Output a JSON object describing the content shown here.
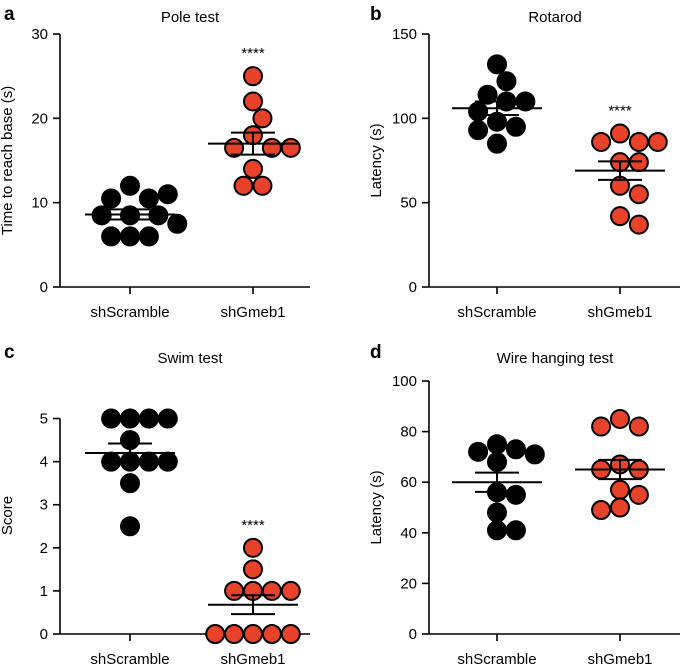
{
  "colors": {
    "group1": "#000000",
    "group2": "#e8432a",
    "outline": "#000000"
  },
  "chart_data": [
    {
      "id": "a",
      "type": "scatter",
      "panel_letter": "a",
      "title": "Pole test",
      "ylabel": "Time to reach base (s)",
      "ylim": [
        0,
        30
      ],
      "yticks": [
        0,
        10,
        20,
        30
      ],
      "categories": [
        "shScramble",
        "shGmeb1"
      ],
      "series": [
        {
          "name": "shScramble",
          "values": [
            12,
            10.5,
            10.5,
            11,
            8.5,
            8.5,
            8.5,
            7.5,
            6,
            6,
            6
          ],
          "mean": 8.6,
          "sem": 0.6
        },
        {
          "name": "shGmeb1",
          "values": [
            25,
            22,
            20,
            18,
            16.5,
            16.5,
            16.5,
            14,
            12,
            12
          ],
          "mean": 17,
          "sem": 1.3
        }
      ],
      "significance": "****",
      "significance_group": 1
    },
    {
      "id": "b",
      "type": "scatter",
      "panel_letter": "b",
      "title": "Rotarod",
      "ylabel": "Latency (s)",
      "ylim": [
        0,
        150
      ],
      "yticks": [
        0,
        50,
        100,
        150
      ],
      "categories": [
        "shScramble",
        "shGmeb1"
      ],
      "series": [
        {
          "name": "shScramble",
          "values": [
            132,
            122,
            114,
            110,
            110,
            104,
            98,
            95,
            93,
            85
          ],
          "mean": 106,
          "sem": 4
        },
        {
          "name": "shGmeb1",
          "values": [
            91,
            86,
            86,
            86,
            74,
            74,
            60,
            55,
            42,
            37
          ],
          "mean": 69,
          "sem": 5.5
        }
      ],
      "significance": "****",
      "significance_group": 1
    },
    {
      "id": "c",
      "type": "scatter",
      "panel_letter": "c",
      "title": "Swim test",
      "ylabel": "Score",
      "ylim": [
        0,
        5.5
      ],
      "yticks": [
        0,
        1,
        2,
        3,
        4,
        5
      ],
      "categories": [
        "shScramble",
        "shGmeb1"
      ],
      "series": [
        {
          "name": "shScramble",
          "values": [
            5,
            5,
            5,
            5,
            4.5,
            4,
            4,
            4,
            4,
            3.5,
            2.5
          ],
          "mean": 4.2,
          "sem": 0.22
        },
        {
          "name": "shGmeb1",
          "values": [
            2,
            1.5,
            1,
            1,
            1,
            1,
            0,
            0,
            0,
            0,
            0
          ],
          "mean": 0.68,
          "sem": 0.22
        }
      ],
      "significance": "****",
      "significance_group": 1
    },
    {
      "id": "d",
      "type": "scatter",
      "panel_letter": "d",
      "title": "Wire hanging test",
      "ylabel": "Latency (s)",
      "ylim": [
        0,
        100
      ],
      "yticks": [
        0,
        20,
        40,
        60,
        80,
        100
      ],
      "categories": [
        "shScramble",
        "shGmeb1"
      ],
      "series": [
        {
          "name": "shScramble",
          "values": [
            75,
            73,
            72,
            71,
            68,
            56,
            55,
            48,
            41,
            41
          ],
          "mean": 60,
          "sem": 3.8
        },
        {
          "name": "shGmeb1",
          "values": [
            85,
            82,
            82,
            67,
            65,
            65,
            57,
            55,
            50,
            49
          ],
          "mean": 65,
          "sem": 3.8
        }
      ],
      "significance": "",
      "significance_group": null
    }
  ]
}
